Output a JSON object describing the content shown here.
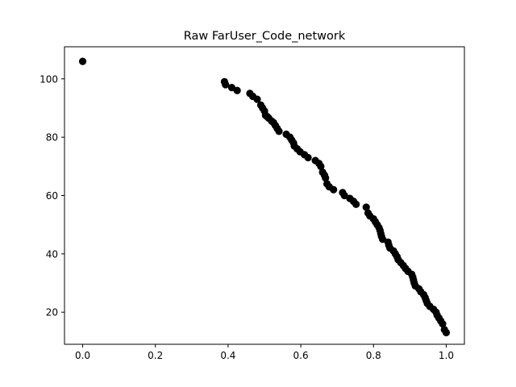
{
  "chart_data": {
    "type": "scatter",
    "title": "Raw FarUser_Code_network",
    "xlabel": "",
    "ylabel": "",
    "xlim": [
      -0.05,
      1.05
    ],
    "ylim": [
      9,
      111
    ],
    "xticks": [
      0.0,
      0.2,
      0.4,
      0.6,
      0.8,
      1.0
    ],
    "xtick_labels": [
      "0.0",
      "0.2",
      "0.4",
      "0.6",
      "0.8",
      "1.0"
    ],
    "yticks": [
      20,
      40,
      60,
      80,
      100
    ],
    "ytick_labels": [
      "20",
      "40",
      "60",
      "80",
      "100"
    ],
    "grid": false,
    "marker_color": "#000000",
    "series": [
      {
        "x": [
          0.0,
          0.39,
          0.393,
          0.41,
          0.425,
          0.46,
          0.468,
          0.48,
          0.49,
          0.495,
          0.5,
          0.503,
          0.508,
          0.512,
          0.52,
          0.525,
          0.53,
          0.535,
          0.54,
          0.56,
          0.57,
          0.575,
          0.58,
          0.582,
          0.59,
          0.598,
          0.61,
          0.62,
          0.64,
          0.65,
          0.655,
          0.66,
          0.665,
          0.668,
          0.672,
          0.678,
          0.69,
          0.715,
          0.72,
          0.735,
          0.745,
          0.752,
          0.78,
          0.785,
          0.79,
          0.8,
          0.805,
          0.81,
          0.815,
          0.818,
          0.82,
          0.822,
          0.825,
          0.84,
          0.842,
          0.845,
          0.855,
          0.86,
          0.865,
          0.868,
          0.875,
          0.882,
          0.888,
          0.895,
          0.905,
          0.908,
          0.91,
          0.912,
          0.915,
          0.925,
          0.93,
          0.938,
          0.942,
          0.945,
          0.948,
          0.955,
          0.965,
          0.972,
          0.975,
          0.98,
          0.985,
          0.99,
          0.995,
          1.0
        ],
        "y": [
          106,
          99,
          98,
          97,
          96,
          95,
          94,
          93,
          91,
          90,
          89,
          87.5,
          87,
          86.5,
          85.5,
          85,
          84,
          83,
          82,
          81,
          80,
          79,
          78,
          77,
          76,
          75,
          74,
          73,
          72,
          71,
          70,
          68,
          67,
          66,
          64,
          63,
          62,
          61,
          60,
          59,
          58,
          57,
          56,
          54,
          53,
          52,
          51,
          50,
          49,
          48,
          47,
          46,
          45,
          44,
          43,
          42,
          41,
          40,
          39,
          38,
          37,
          36,
          35,
          34,
          33,
          32,
          31,
          30,
          29,
          28,
          27,
          26,
          25,
          24,
          23,
          22,
          21,
          20,
          19,
          18,
          17,
          16,
          14,
          13
        ]
      }
    ]
  }
}
